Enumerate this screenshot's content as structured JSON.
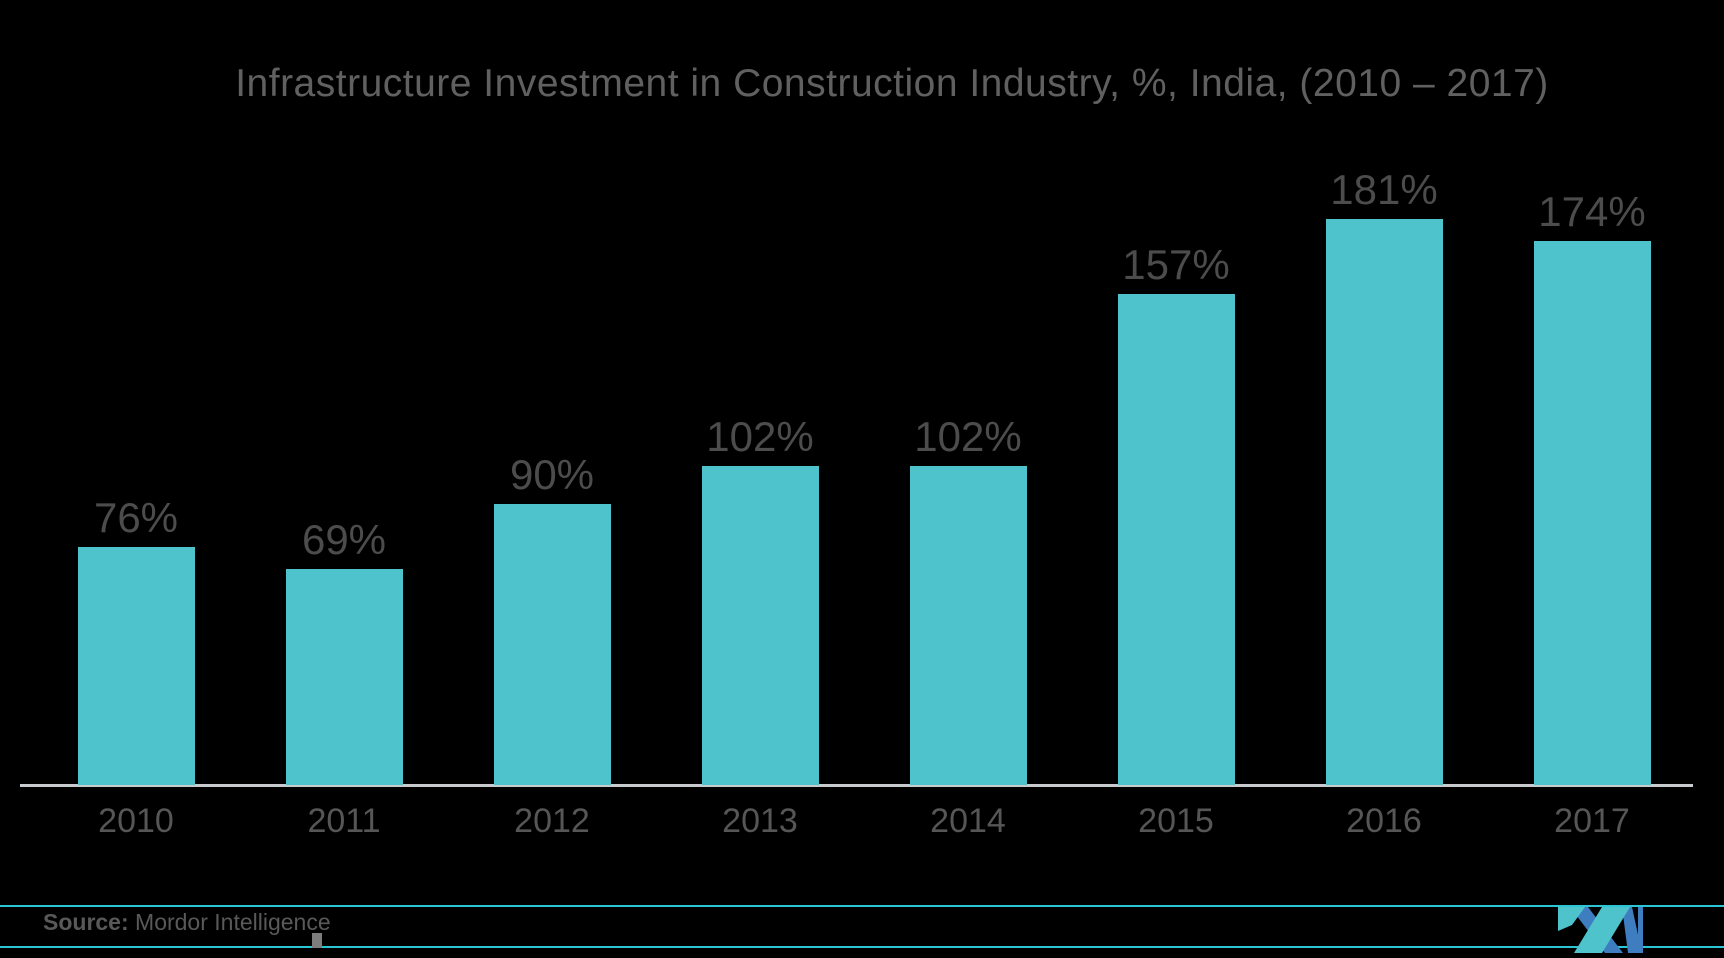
{
  "chart_data": {
    "type": "bar",
    "title": "Infrastructure Investment in Construction Industry, %, India, (2010 – 2017)",
    "categories": [
      "2010",
      "2011",
      "2012",
      "2013",
      "2014",
      "2015",
      "2016",
      "2017"
    ],
    "values": [
      76,
      69,
      90,
      102,
      102,
      157,
      181,
      174
    ],
    "labels": [
      "76%",
      "69%",
      "90%",
      "102%",
      "102%",
      "157%",
      "181%",
      "174%"
    ],
    "xlabel": "",
    "ylabel": "",
    "ylim": [
      0,
      200
    ],
    "grid": false,
    "legend": false,
    "bar_color": "#4FC3CC",
    "background": "#000000",
    "value_label_color": "#4C4C4C",
    "tick_label_color": "#565656",
    "title_color": "#606060",
    "axis_line_color": "#C8CBCD"
  },
  "footer": {
    "source_prefix": "Source:",
    "source_name": " Mordor Intelligence",
    "rule_color": "#2BC5D4"
  },
  "logo": {
    "name": "mordor-intelligence-logo",
    "teal": "#4FC3CC",
    "blue": "#3E7EC0"
  }
}
